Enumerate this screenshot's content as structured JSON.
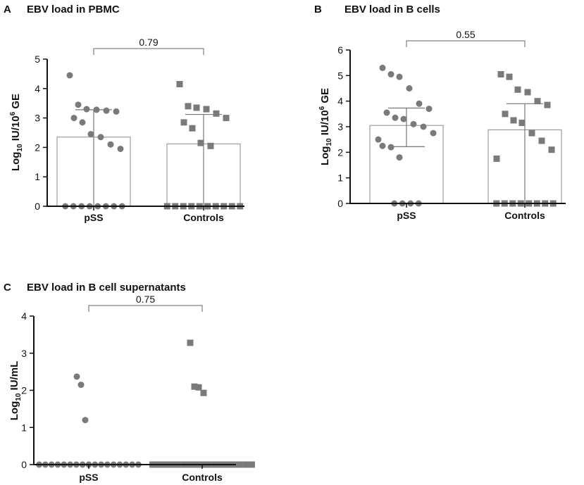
{
  "chart_data": [
    {
      "type": "bar",
      "panel": "A",
      "title": "EBV load in PBMC",
      "ylabel": {
        "prefix": "Log",
        "sub": "10",
        "mid": " IU/10",
        "sup": "6",
        "suffix": " GE"
      },
      "ylim": [
        0,
        5
      ],
      "yticks": [
        0,
        1,
        2,
        3,
        4,
        5
      ],
      "categories": [
        "pSS",
        "Controls"
      ],
      "bar_means": [
        2.35,
        2.12
      ],
      "error_low": [
        0.0,
        0.0
      ],
      "error_high": [
        3.28,
        3.12
      ],
      "marker": [
        "circle",
        "square"
      ],
      "points": [
        [
          0,
          0,
          0,
          0,
          0,
          0,
          0,
          0,
          4.45,
          3.45,
          3.3,
          3.28,
          3.25,
          3.22,
          3.0,
          2.85,
          2.45,
          2.35,
          2.1,
          1.95
        ],
        [
          0,
          0,
          0,
          0,
          0,
          0,
          0,
          0,
          0,
          0,
          4.15,
          3.4,
          3.35,
          3.3,
          3.15,
          3.0,
          2.85,
          2.65,
          2.15,
          2.05
        ]
      ],
      "comparison": {
        "label": "0.79"
      }
    },
    {
      "type": "bar",
      "panel": "B",
      "title": "EBV load in B cells",
      "ylabel": {
        "prefix": "Log",
        "sub": "10",
        "mid": " IU/10",
        "sup": "6",
        "suffix": " GE"
      },
      "ylim": [
        0,
        6
      ],
      "yticks": [
        0,
        1,
        2,
        3,
        4,
        5,
        6
      ],
      "categories": [
        "pSS",
        "Controls"
      ],
      "bar_means": [
        3.05,
        2.88
      ],
      "error_low": [
        2.22,
        0.0
      ],
      "error_high": [
        3.73,
        3.9
      ],
      "marker": [
        "circle",
        "square"
      ],
      "points": [
        [
          0,
          0,
          0,
          0,
          5.3,
          5.05,
          4.95,
          4.5,
          3.9,
          3.7,
          3.55,
          3.35,
          3.3,
          3.1,
          3.0,
          2.75,
          2.5,
          2.25,
          2.2,
          1.8
        ],
        [
          0,
          0,
          0,
          0,
          0,
          0,
          0,
          0,
          5.05,
          4.95,
          4.45,
          4.35,
          4.0,
          3.85,
          3.5,
          3.25,
          3.15,
          2.75,
          2.45,
          2.1,
          1.75
        ]
      ],
      "comparison": {
        "label": "0.55"
      }
    },
    {
      "type": "scatter",
      "panel": "C",
      "title": "EBV load in B cell supernatants",
      "ylabel": {
        "prefix": "Log",
        "sub": "10",
        "mid": " IU/mL",
        "sup": "",
        "suffix": ""
      },
      "ylim": [
        0,
        4
      ],
      "yticks": [
        0,
        1,
        2,
        3,
        4
      ],
      "categories": [
        "pSS",
        "Controls"
      ],
      "marker": [
        "circle",
        "square"
      ],
      "points": [
        [
          0,
          0,
          0,
          0,
          0,
          0,
          0,
          0,
          0,
          0,
          0,
          0,
          0,
          0,
          0,
          0,
          0,
          2.37,
          2.15,
          1.2
        ],
        [
          0,
          0,
          0,
          0,
          0,
          0,
          0,
          0,
          0,
          0,
          0,
          0,
          0,
          0,
          0,
          0,
          0,
          3.28,
          2.1,
          2.08,
          1.93
        ]
      ],
      "comparison": {
        "label": "0.75"
      }
    }
  ]
}
